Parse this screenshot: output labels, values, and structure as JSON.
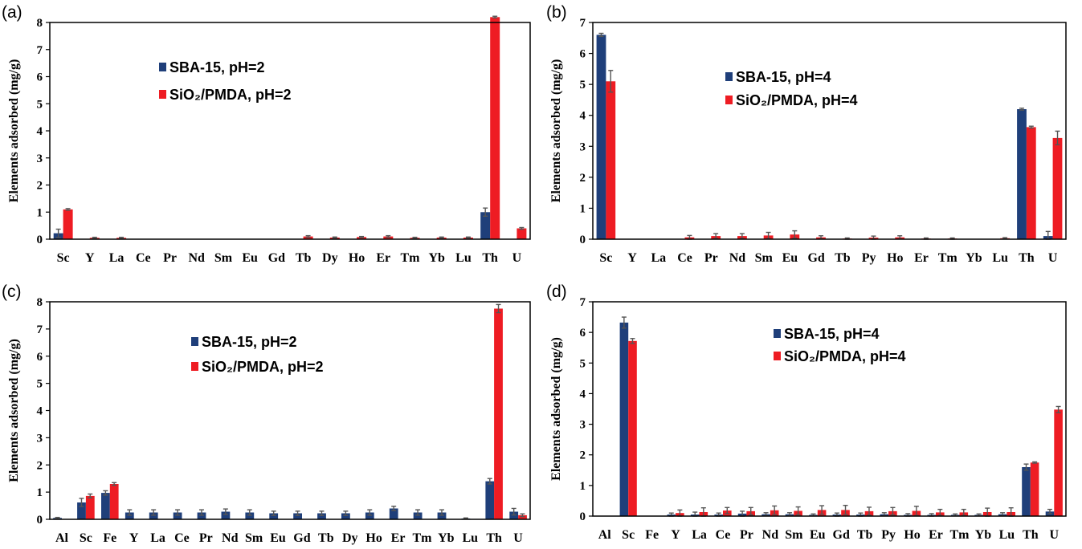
{
  "colors": {
    "sba": "#1f3f7a",
    "sio2": "#ee1c23",
    "axis": "#000000",
    "err": "#555555"
  },
  "chart_data": [
    {
      "type": "bar",
      "panel_label": "(a)",
      "ylabel": "Elements adsorbed (mg/g)",
      "ylim": [
        0,
        8
      ],
      "yticks": [
        0,
        1,
        2,
        3,
        4,
        5,
        6,
        7,
        8
      ],
      "categories": [
        "Sc",
        "Y",
        "La",
        "Ce",
        "Pr",
        "Nd",
        "Sm",
        "Eu",
        "Gd",
        "Tb",
        "Dy",
        "Ho",
        "Er",
        "Tm",
        "Yb",
        "Lu",
        "Th",
        "U"
      ],
      "series": [
        {
          "name": "SBA-15, pH=2",
          "values": [
            0.22,
            0,
            0,
            0,
            0,
            0,
            0,
            0,
            0,
            0,
            0,
            0,
            0,
            0,
            0,
            0,
            1.0,
            0
          ],
          "errors": [
            0.15,
            0,
            0,
            0,
            0,
            0,
            0,
            0,
            0,
            0,
            0,
            0,
            0,
            0,
            0,
            0,
            0.15,
            0
          ]
        },
        {
          "name": "SiO₂/PMDA, pH=2",
          "values": [
            1.1,
            0.05,
            0.05,
            0,
            0,
            0,
            0,
            0,
            0,
            0.1,
            0.06,
            0.08,
            0.1,
            0.05,
            0.06,
            0.06,
            8.2,
            0.4
          ],
          "errors": [
            0.03,
            0.02,
            0.02,
            0,
            0,
            0,
            0,
            0,
            0,
            0.03,
            0.02,
            0.02,
            0.03,
            0.02,
            0.02,
            0.02,
            0.03,
            0.03
          ]
        }
      ],
      "legend": "upper-left"
    },
    {
      "type": "bar",
      "panel_label": "(b)",
      "ylabel": "Elements adsorbed (mg/g)",
      "ylim": [
        0,
        7
      ],
      "yticks": [
        0,
        1,
        2,
        3,
        4,
        5,
        6,
        7
      ],
      "categories": [
        "Sc",
        "Y",
        "La",
        "Ce",
        "Pr",
        "Nd",
        "Sm",
        "Eu",
        "Gd",
        "Tb",
        "Py",
        "Ho",
        "Er",
        "Tm",
        "Yb",
        "Lu",
        "Th",
        "U"
      ],
      "series": [
        {
          "name": "SBA-15, pH=4",
          "values": [
            6.6,
            0,
            0,
            0,
            0,
            0,
            0,
            0,
            0,
            0,
            0,
            0,
            0,
            0,
            0,
            0,
            4.2,
            0.1
          ],
          "errors": [
            0.05,
            0,
            0,
            0,
            0,
            0,
            0,
            0,
            0,
            0,
            0,
            0,
            0,
            0,
            0,
            0,
            0.03,
            0.15
          ]
        },
        {
          "name": "SiO₂/PMDA, pH=4",
          "values": [
            5.1,
            0,
            0,
            0.06,
            0.1,
            0.1,
            0.12,
            0.15,
            0.06,
            0.02,
            0.05,
            0.06,
            0.02,
            0.02,
            0,
            0.03,
            3.62,
            3.27
          ],
          "errors": [
            0.35,
            0,
            0,
            0.06,
            0.08,
            0.08,
            0.1,
            0.12,
            0.05,
            0.02,
            0.05,
            0.05,
            0.02,
            0.02,
            0,
            0.02,
            0.03,
            0.22
          ]
        }
      ],
      "legend": "center"
    },
    {
      "type": "bar",
      "panel_label": "(c)",
      "ylabel": "Elements adsorbed (mg/g)",
      "ylim": [
        0,
        8
      ],
      "yticks": [
        0,
        1,
        2,
        3,
        4,
        5,
        6,
        7,
        8
      ],
      "categories": [
        "Al",
        "Sc",
        "Fe",
        "Y",
        "La",
        "Ce",
        "Pr",
        "Nd",
        "Sm",
        "Eu",
        "Gd",
        "Tb",
        "Dy",
        "Ho",
        "Er",
        "Tm",
        "Yb",
        "Lu",
        "Th",
        "U"
      ],
      "series": [
        {
          "name": "SBA-15, pH=2",
          "values": [
            0.05,
            0.62,
            0.97,
            0.25,
            0.25,
            0.25,
            0.25,
            0.28,
            0.25,
            0.22,
            0.22,
            0.22,
            0.22,
            0.25,
            0.4,
            0.25,
            0.25,
            0.03,
            1.4,
            0.28
          ],
          "errors": [
            0.02,
            0.15,
            0.08,
            0.1,
            0.1,
            0.1,
            0.1,
            0.1,
            0.1,
            0.08,
            0.08,
            0.08,
            0.08,
            0.1,
            0.08,
            0.1,
            0.1,
            0.02,
            0.1,
            0.12
          ]
        },
        {
          "name": "SiO₂/PMDA, pH=2",
          "values": [
            0,
            0.86,
            1.3,
            0,
            0,
            0,
            0,
            0,
            0,
            0,
            0,
            0,
            0,
            0,
            0,
            0,
            0,
            0,
            7.75,
            0.15
          ],
          "errors": [
            0,
            0.07,
            0.05,
            0,
            0,
            0,
            0,
            0,
            0,
            0,
            0,
            0,
            0,
            0,
            0,
            0,
            0,
            0,
            0.15,
            0.05
          ]
        }
      ],
      "legend": "center"
    },
    {
      "type": "bar",
      "panel_label": "(d)",
      "ylabel": "Elements adsorbed (mg/g)",
      "ylim": [
        0,
        7
      ],
      "yticks": [
        0,
        1,
        2,
        3,
        4,
        5,
        6,
        7
      ],
      "categories": [
        "Al",
        "Sc",
        "Fe",
        "Y",
        "La",
        "Ce",
        "Pr",
        "Nd",
        "Sm",
        "Eu",
        "Gd",
        "Tb",
        "Py",
        "Ho",
        "Er",
        "Tm",
        "Yb",
        "Lu",
        "Th",
        "U"
      ],
      "series": [
        {
          "name": "SBA-15, pH=4",
          "values": [
            0,
            6.32,
            0,
            0.05,
            0.05,
            0.05,
            0.08,
            0.06,
            0.06,
            0.04,
            0.05,
            0.05,
            0.06,
            0.04,
            0.04,
            0.04,
            0.04,
            0.06,
            1.6,
            0.15
          ],
          "errors": [
            0,
            0.18,
            0,
            0.05,
            0.08,
            0.05,
            0.08,
            0.05,
            0.05,
            0.03,
            0.05,
            0.05,
            0.05,
            0.04,
            0.04,
            0.03,
            0.03,
            0.05,
            0.1,
            0.07
          ]
        },
        {
          "name": "SiO₂/PMDA, pH=4",
          "values": [
            0,
            5.72,
            0,
            0.1,
            0.13,
            0.18,
            0.16,
            0.19,
            0.17,
            0.2,
            0.2,
            0.16,
            0.16,
            0.17,
            0.12,
            0.12,
            0.13,
            0.13,
            1.75,
            3.48
          ],
          "errors": [
            0,
            0.08,
            0,
            0.1,
            0.14,
            0.1,
            0.12,
            0.14,
            0.13,
            0.14,
            0.15,
            0.13,
            0.12,
            0.15,
            0.1,
            0.1,
            0.13,
            0.14,
            0.02,
            0.1
          ]
        }
      ],
      "legend": "upper-left"
    }
  ]
}
